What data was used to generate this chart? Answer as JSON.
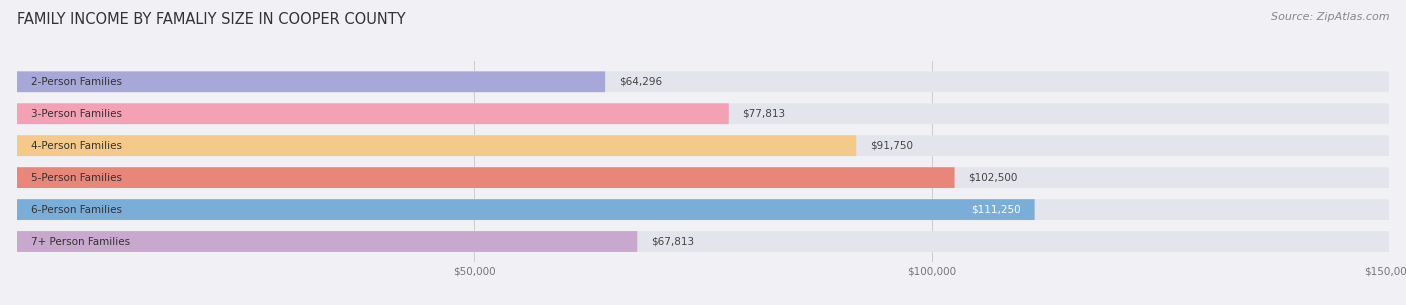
{
  "title": "FAMILY INCOME BY FAMALIY SIZE IN COOPER COUNTY",
  "source": "Source: ZipAtlas.com",
  "categories": [
    "2-Person Families",
    "3-Person Families",
    "4-Person Families",
    "5-Person Families",
    "6-Person Families",
    "7+ Person Families"
  ],
  "values": [
    64296,
    77813,
    91750,
    102500,
    111250,
    67813
  ],
  "bar_colors": [
    "#a8a8d8",
    "#f4a0b5",
    "#f5c98a",
    "#e8867a",
    "#7aaed8",
    "#c8a8cc"
  ],
  "value_labels": [
    "$64,296",
    "$77,813",
    "$91,750",
    "$102,500",
    "$111,250",
    "$67,813"
  ],
  "label_inside_bar": [
    false,
    false,
    false,
    false,
    true,
    false
  ],
  "xlim": [
    0,
    150000
  ],
  "xticks": [
    0,
    50000,
    100000,
    150000
  ],
  "xticklabels": [
    "",
    "$50,000",
    "$100,000",
    "$150,000"
  ],
  "bar_height": 0.65,
  "background_color": "#f0f0f5",
  "bar_bg_color": "#e4e4ec",
  "title_fontsize": 10.5,
  "label_fontsize": 7.5,
  "value_fontsize": 7.5,
  "source_fontsize": 8
}
